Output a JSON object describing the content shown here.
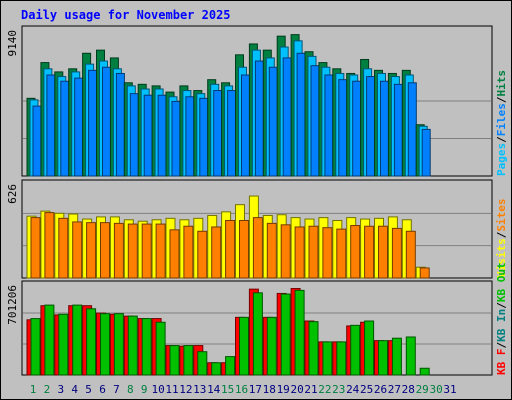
{
  "chart_data": [
    {
      "type": "bar",
      "title": "Daily usage for November 2025",
      "panel": "top",
      "y_max_label": "9140",
      "ylim": [
        0,
        9140
      ],
      "categories": [
        "1",
        "2",
        "3",
        "4",
        "5",
        "6",
        "7",
        "8",
        "9",
        "10",
        "11",
        "12",
        "13",
        "14",
        "15",
        "16",
        "17",
        "18",
        "19",
        "20",
        "21",
        "22",
        "23",
        "24",
        "25",
        "26",
        "27",
        "28",
        "29",
        "30",
        "31"
      ],
      "legend": [
        "Pages",
        "/",
        "Files",
        "/",
        "Hits"
      ],
      "series": [
        {
          "name": "Hits",
          "color": "#008040",
          "values": [
            5000,
            7300,
            6700,
            6900,
            7900,
            8100,
            7600,
            6000,
            5900,
            5800,
            5400,
            5800,
            5500,
            6200,
            6000,
            7800,
            8500,
            8100,
            9000,
            9100,
            8000,
            7300,
            6900,
            6600,
            7500,
            6800,
            6600,
            6800,
            3300,
            0,
            0
          ]
        },
        {
          "name": "Files",
          "color": "#00c0ff",
          "values": [
            4900,
            6900,
            6400,
            6700,
            7200,
            7400,
            6900,
            5800,
            5600,
            5600,
            5100,
            5500,
            5300,
            5900,
            5800,
            7000,
            8100,
            7600,
            8300,
            8700,
            7700,
            7000,
            6600,
            6500,
            6900,
            6600,
            6400,
            6500,
            3200,
            0,
            0
          ]
        },
        {
          "name": "Pages",
          "color": "#0080ff",
          "values": [
            4500,
            6500,
            6100,
            6300,
            6800,
            7000,
            6600,
            5300,
            5200,
            5200,
            4800,
            5100,
            5000,
            5500,
            5500,
            6500,
            7400,
            7000,
            7600,
            7900,
            7100,
            6500,
            6200,
            6100,
            6400,
            6100,
            5900,
            6000,
            3000,
            0,
            0
          ]
        }
      ]
    },
    {
      "type": "bar",
      "panel": "middle",
      "y_max_label": "626",
      "ylim": [
        0,
        626
      ],
      "categories": [
        "1",
        "2",
        "3",
        "4",
        "5",
        "6",
        "7",
        "8",
        "9",
        "10",
        "11",
        "12",
        "13",
        "14",
        "15",
        "16",
        "17",
        "18",
        "19",
        "20",
        "21",
        "22",
        "23",
        "24",
        "25",
        "26",
        "27",
        "28",
        "29",
        "30",
        "31"
      ],
      "legend": [
        "Visits",
        "/",
        "Sites"
      ],
      "series": [
        {
          "name": "Visits",
          "color": "#ffff00",
          "values": [
            430,
            465,
            450,
            445,
            410,
            425,
            425,
            405,
            395,
            405,
            415,
            405,
            415,
            435,
            460,
            510,
            570,
            435,
            440,
            420,
            410,
            420,
            400,
            420,
            410,
            415,
            425,
            405,
            75,
            0,
            0
          ]
        },
        {
          "name": "Sites",
          "color": "#ff8000",
          "values": [
            420,
            455,
            415,
            390,
            385,
            385,
            380,
            375,
            375,
            375,
            335,
            360,
            325,
            355,
            400,
            400,
            420,
            380,
            370,
            355,
            360,
            350,
            340,
            365,
            360,
            360,
            345,
            325,
            70,
            0,
            0
          ]
        }
      ]
    },
    {
      "type": "bar",
      "panel": "bottom",
      "y_max_label": "701206",
      "ylim": [
        0,
        701206
      ],
      "categories": [
        "1",
        "2",
        "3",
        "4",
        "5",
        "6",
        "7",
        "8",
        "9",
        "10",
        "11",
        "12",
        "13",
        "14",
        "15",
        "16",
        "17",
        "18",
        "19",
        "20",
        "21",
        "22",
        "23",
        "24",
        "25",
        "26",
        "27",
        "28",
        "29",
        "30",
        "31"
      ],
      "legend": [
        "KB F",
        "/",
        "KB In",
        "/",
        "KB Out"
      ],
      "series": [
        {
          "name": "KB In",
          "color": "#ff0000",
          "values": [
            450000,
            565000,
            490000,
            565000,
            565000,
            505000,
            495000,
            480000,
            460000,
            460000,
            240000,
            235000,
            240000,
            100000,
            100000,
            470000,
            700000,
            470000,
            665000,
            705000,
            440000,
            270000,
            270000,
            400000,
            430000,
            280000,
            280000,
            0,
            0,
            0,
            0
          ]
        },
        {
          "name": "KB Out",
          "color": "#00c000",
          "values": [
            460000,
            570000,
            495000,
            570000,
            540000,
            500000,
            500000,
            480000,
            460000,
            430000,
            240000,
            240000,
            190000,
            100000,
            150000,
            470000,
            670000,
            470000,
            660000,
            690000,
            435000,
            270000,
            270000,
            405000,
            440000,
            280000,
            300000,
            310000,
            55000,
            0,
            0
          ]
        }
      ]
    }
  ],
  "day_label_colors": [
    "#008040",
    "#008040",
    "#000080",
    "#000080",
    "#000080",
    "#000080",
    "#000080",
    "#008040",
    "#008040",
    "#000080",
    "#000080",
    "#000080",
    "#000080",
    "#000080",
    "#008040",
    "#008040",
    "#000080",
    "#000080",
    "#000080",
    "#000080",
    "#000080",
    "#008040",
    "#008040",
    "#000080",
    "#000080",
    "#000080",
    "#000080",
    "#000080",
    "#008040",
    "#008040",
    "#000080"
  ]
}
